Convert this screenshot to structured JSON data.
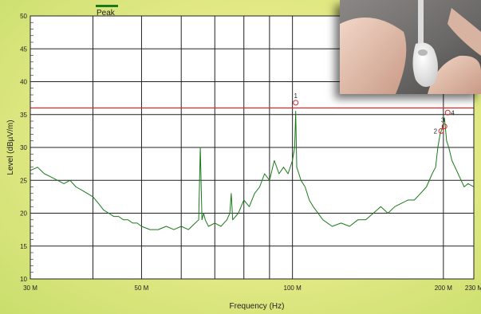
{
  "legend": {
    "label": "Peak",
    "color": "#1a7a1a"
  },
  "colors": {
    "trace": "#1a7a1a",
    "limit": "#d42a2a",
    "marker": "#d42a2a",
    "grid": "#222222"
  },
  "icons": {
    "inset": "earbud-photo"
  },
  "chart_data": {
    "type": "line",
    "xlabel": "Frequency (Hz)",
    "ylabel": "Level (dBµV/m)",
    "x_scale": "log",
    "xlim": [
      30000000,
      230000000
    ],
    "ylim": [
      10,
      50
    ],
    "grid": true,
    "legend_position": "top-left",
    "x_ticks": [
      {
        "value": 30000000,
        "label": "30 M"
      },
      {
        "value": 40000000,
        "label": ""
      },
      {
        "value": 50000000,
        "label": "50 M"
      },
      {
        "value": 60000000,
        "label": ""
      },
      {
        "value": 70000000,
        "label": ""
      },
      {
        "value": 80000000,
        "label": ""
      },
      {
        "value": 90000000,
        "label": ""
      },
      {
        "value": 100000000,
        "label": "100 M"
      },
      {
        "value": 200000000,
        "label": "200 M"
      },
      {
        "value": 230000000,
        "label": "230 M"
      }
    ],
    "y_ticks": [
      10,
      15,
      20,
      25,
      30,
      35,
      40,
      45,
      50
    ],
    "limit_line": {
      "value": 36
    },
    "series": [
      {
        "name": "Peak",
        "x": [
          30000000,
          31000000,
          32000000,
          33000000,
          34000000,
          35000000,
          36000000,
          37000000,
          38000000,
          39000000,
          40000000,
          41000000,
          42000000,
          43000000,
          44000000,
          45000000,
          46000000,
          47000000,
          48000000,
          49000000,
          50000000,
          52000000,
          54000000,
          56000000,
          58000000,
          60000000,
          62000000,
          64000000,
          65000000,
          65500000,
          66000000,
          66500000,
          67000000,
          68000000,
          70000000,
          72000000,
          74000000,
          75000000,
          75500000,
          76000000,
          78000000,
          80000000,
          82000000,
          84000000,
          86000000,
          88000000,
          90000000,
          92000000,
          94000000,
          96000000,
          98000000,
          100000000,
          101000000,
          101500000,
          102000000,
          103000000,
          104000000,
          106000000,
          108000000,
          110000000,
          115000000,
          120000000,
          125000000,
          130000000,
          135000000,
          140000000,
          145000000,
          150000000,
          155000000,
          160000000,
          165000000,
          170000000,
          175000000,
          180000000,
          185000000,
          190000000,
          193000000,
          195000000,
          197000000,
          199000000,
          201000000,
          203000000,
          205000000,
          208000000,
          211000000,
          214000000,
          217000000,
          220000000,
          224000000,
          230000000
        ],
        "values": [
          26.5,
          27,
          26,
          25.5,
          25,
          24.5,
          25,
          24,
          23.5,
          23,
          22.5,
          21.5,
          20.5,
          20,
          19.5,
          19.5,
          19,
          19,
          18.5,
          18.5,
          18,
          17.5,
          17.5,
          18,
          17.5,
          18,
          17.5,
          18.5,
          19,
          30,
          19,
          20,
          19,
          18,
          18.5,
          18,
          19,
          20,
          23,
          19,
          20,
          22,
          21,
          23,
          24,
          26,
          25,
          28,
          26,
          27,
          26,
          28,
          30,
          35.5,
          27,
          26,
          25,
          24,
          22,
          21,
          19,
          18,
          18.5,
          18,
          19,
          19,
          20,
          21,
          20,
          21,
          21.5,
          22,
          22,
          23,
          24,
          26,
          27,
          30,
          32,
          33,
          34.5,
          31,
          30,
          28,
          27,
          26,
          25,
          24,
          24.5,
          24
        ]
      }
    ],
    "markers": [
      {
        "label": "1",
        "x": 101500000,
        "y": 36.8
      },
      {
        "label": "2",
        "x": 198000000,
        "y": 32.5
      },
      {
        "label": "3",
        "x": 201000000,
        "y": 33.2
      },
      {
        "label": "4",
        "x": 204000000,
        "y": 35.3
      }
    ]
  }
}
